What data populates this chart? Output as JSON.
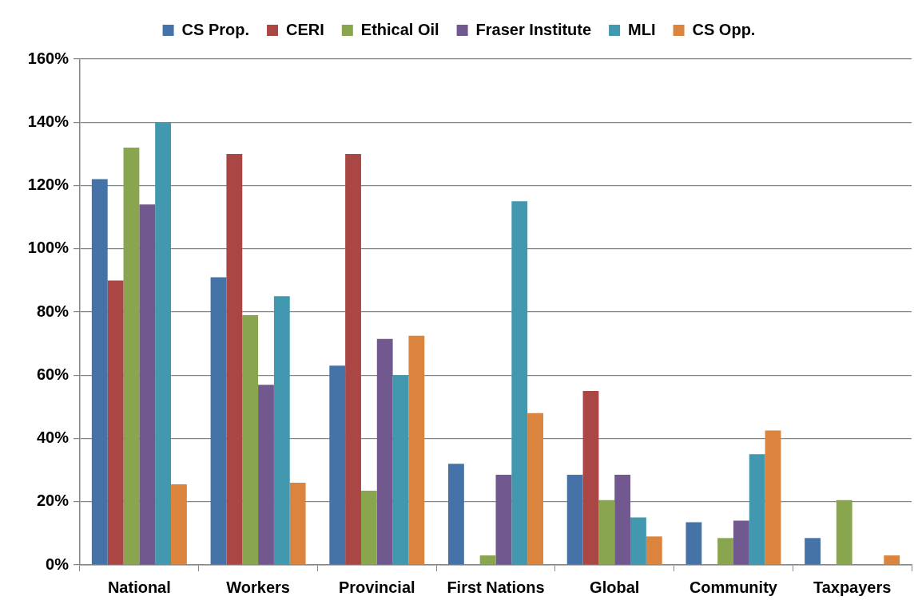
{
  "chart_data": {
    "type": "bar",
    "categories": [
      "National",
      "Workers",
      "Provincial",
      "First Nations",
      "Global",
      "Community",
      "Taxpayers"
    ],
    "series": [
      {
        "name": "CS Prop.",
        "color": "#4572a7",
        "values": [
          122,
          91,
          63,
          32,
          28.5,
          13.5,
          8.5
        ]
      },
      {
        "name": "CERI",
        "color": "#aa4643",
        "values": [
          90,
          130,
          130,
          null,
          55,
          null,
          null
        ]
      },
      {
        "name": "Ethical Oil",
        "color": "#89a54e",
        "values": [
          132,
          79,
          23.5,
          3,
          20.5,
          8.5,
          20.5
        ]
      },
      {
        "name": "Fraser Institute",
        "color": "#71588f",
        "values": [
          114,
          57,
          71.5,
          28.5,
          28.5,
          14,
          null
        ]
      },
      {
        "name": "MLI",
        "color": "#4198af",
        "values": [
          140,
          85,
          60,
          115,
          15,
          35,
          null
        ]
      },
      {
        "name": "CS Opp.",
        "color": "#db843d",
        "values": [
          25.5,
          26,
          72.5,
          48,
          9,
          42.5,
          3
        ]
      }
    ],
    "ylim": [
      0,
      160
    ],
    "yticks": [
      {
        "value": 0,
        "label": "0%"
      },
      {
        "value": 20,
        "label": "20%"
      },
      {
        "value": 40,
        "label": "40%"
      },
      {
        "value": 60,
        "label": "60%"
      },
      {
        "value": 80,
        "label": "80%"
      },
      {
        "value": 100,
        "label": "100%"
      },
      {
        "value": 120,
        "label": "120%"
      },
      {
        "value": 140,
        "label": "140%"
      },
      {
        "value": 160,
        "label": "160%"
      }
    ],
    "grid": "y",
    "legend": "top"
  }
}
